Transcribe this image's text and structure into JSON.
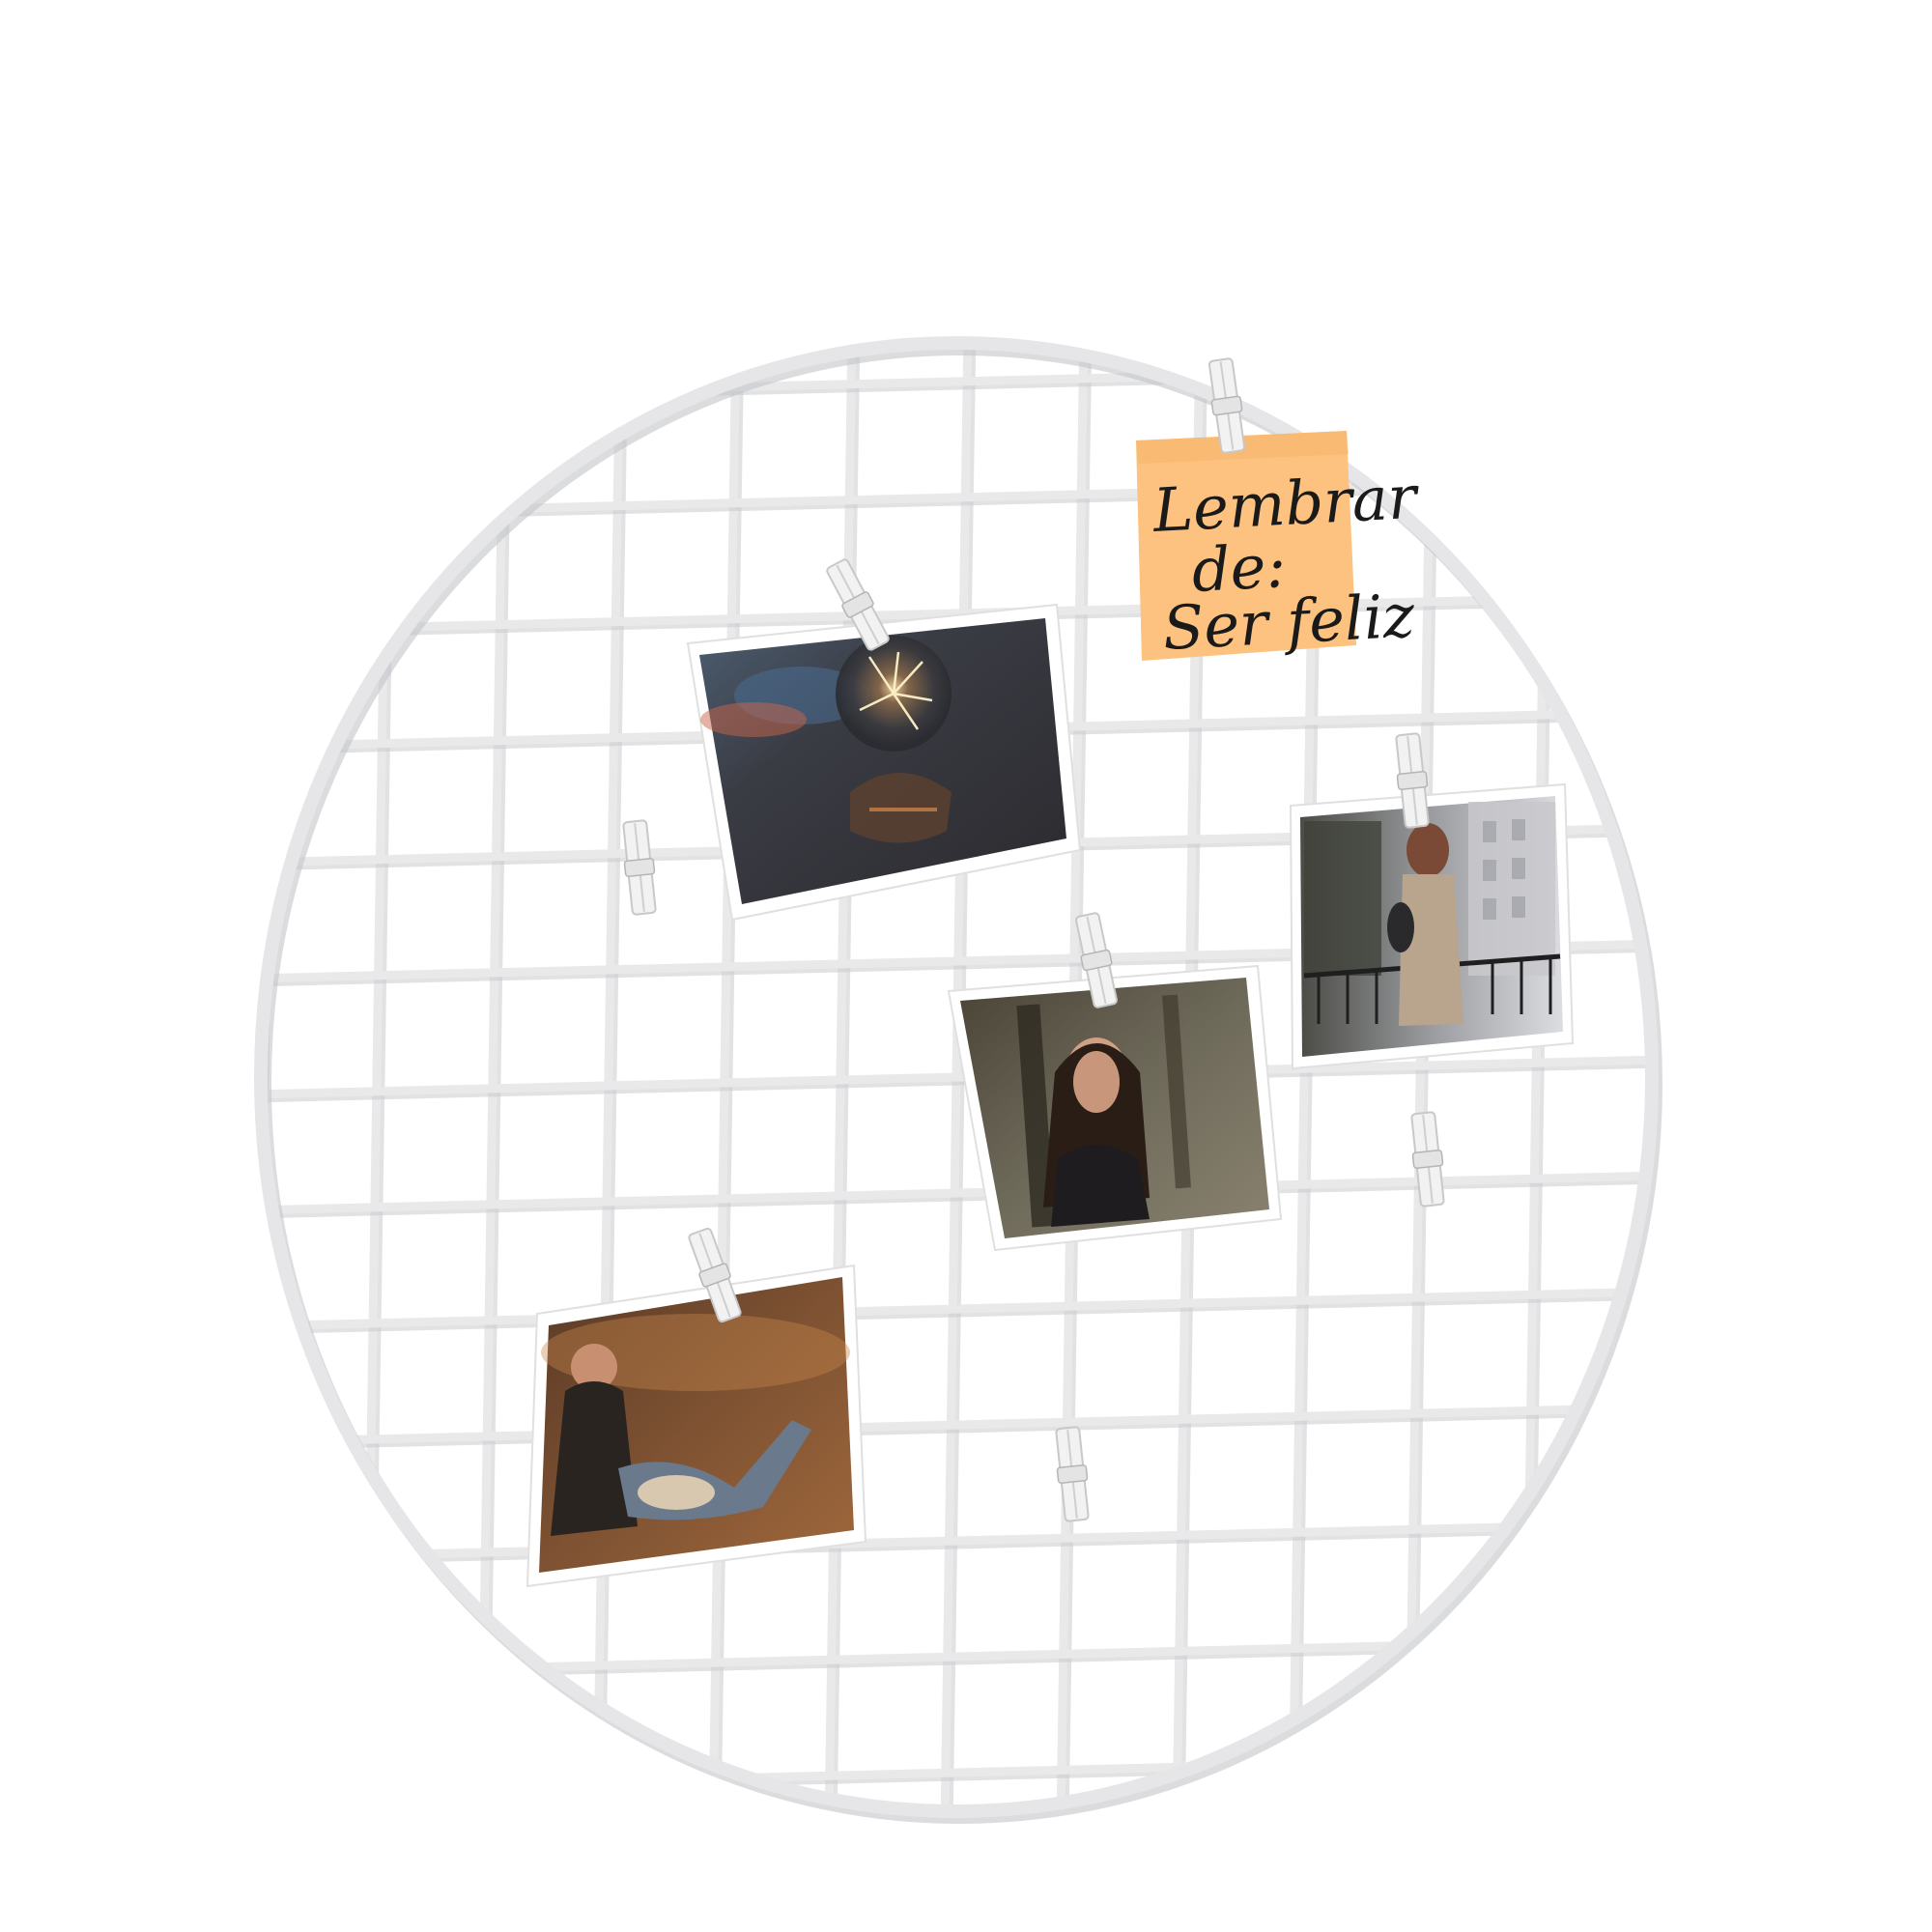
{
  "note": {
    "line1": "Lembrar",
    "line2": "de:",
    "line3": "Ser feliz",
    "color": "#fdc27f"
  },
  "colors": {
    "background": "#ffffff",
    "wire": "#e9e9ea",
    "clip": "#f2f2f2"
  },
  "photos": [
    {
      "name": "photo-sparkler",
      "icon": "sparkler-photo-icon"
    },
    {
      "name": "photo-woman-forest",
      "icon": "woman-forest-photo-icon"
    },
    {
      "name": "photo-woman-city",
      "icon": "woman-city-photo-icon"
    },
    {
      "name": "photo-couple-field",
      "icon": "couple-field-photo-icon"
    }
  ]
}
